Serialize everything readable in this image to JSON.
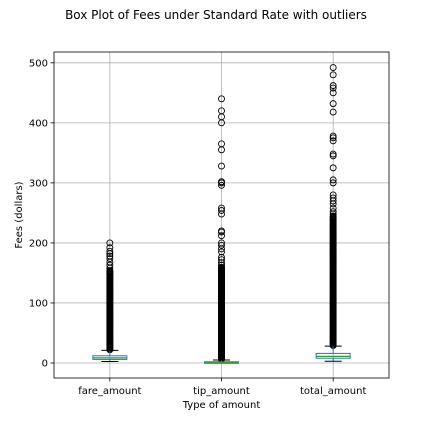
{
  "chart_data": {
    "type": "box",
    "title": "Box Plot of Fees under Standard Rate with outliers",
    "xlabel": "Type of amount",
    "ylabel": "Fees (dollars)",
    "ylim": [
      -25,
      518
    ],
    "yticks": [
      0,
      100,
      200,
      300,
      400,
      500
    ],
    "grid": true,
    "categories": [
      "fare_amount",
      "tip_amount",
      "total_amount"
    ],
    "boxes": [
      {
        "category": "fare_amount",
        "whisker_low": 2.5,
        "q1": 6.0,
        "median": 8.5,
        "q3": 12.0,
        "whisker_high": 21.0,
        "dense_outlier_range": [
          22,
          155
        ],
        "outliers": [
          158,
          163,
          168,
          174,
          178,
          182,
          186,
          192,
          200
        ]
      },
      {
        "category": "tip_amount",
        "whisker_low": 0,
        "q1": 0,
        "median": 1.0,
        "q3": 2.0,
        "whisker_high": 5.0,
        "dense_outlier_range": [
          6,
          160
        ],
        "outliers": [
          163,
          167,
          172,
          176,
          185,
          190,
          196,
          200,
          212,
          218,
          220,
          248,
          254,
          258,
          296,
          300,
          302,
          328,
          355,
          365,
          400,
          410,
          420,
          440
        ]
      },
      {
        "category": "total_amount",
        "whisker_low": 3.0,
        "q1": 8.0,
        "median": 11.0,
        "q3": 16.0,
        "whisker_high": 28.0,
        "dense_outlier_range": [
          29,
          245
        ],
        "outliers": [
          248,
          252,
          258,
          265,
          270,
          275,
          280,
          300,
          305,
          325,
          345,
          348,
          370,
          375,
          378,
          418,
          432,
          450,
          458,
          462,
          480,
          492
        ]
      }
    ]
  }
}
